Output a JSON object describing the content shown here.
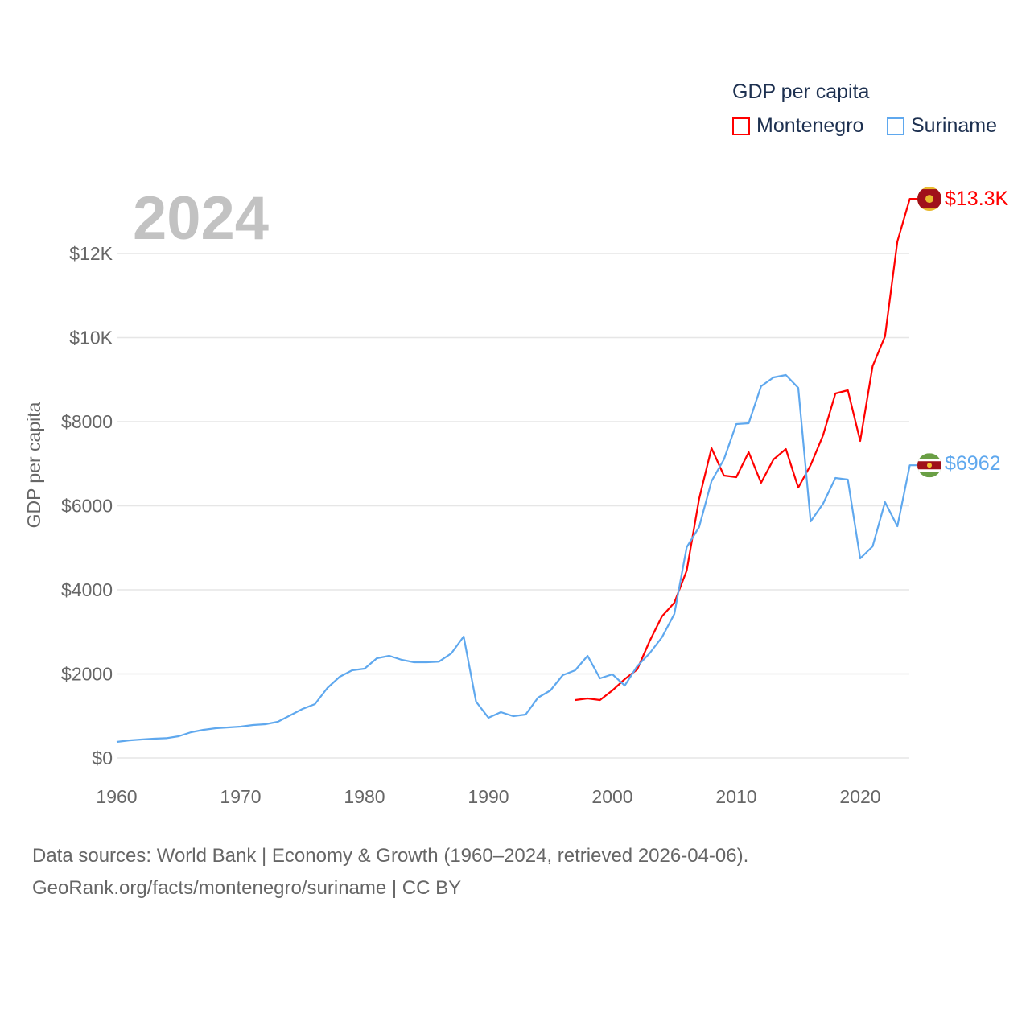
{
  "chart_data": {
    "type": "line",
    "title": "GDP per capita",
    "year_label": "2024",
    "ylabel": "GDP per capita",
    "xlabel": "",
    "xlim": [
      1960,
      2024
    ],
    "ylim": [
      0,
      13300
    ],
    "x_ticks": [
      1960,
      1970,
      1980,
      1990,
      2000,
      2010,
      2020
    ],
    "x_tick_labels": [
      "1960",
      "1970",
      "1980",
      "1990",
      "2000",
      "2010",
      "2020"
    ],
    "y_ticks": [
      0,
      2000,
      4000,
      6000,
      8000,
      10000,
      12000
    ],
    "y_tick_labels": [
      "$0",
      "$2000",
      "$4000",
      "$6000",
      "$8000",
      "$10K",
      "$12K"
    ],
    "grid": true,
    "legend_placement": "top-right",
    "series": [
      {
        "name": "Montenegro",
        "color": "#ff0000",
        "end_label": "$13.3K",
        "flag": "montenegro-flag",
        "x": [
          1997,
          1998,
          1999,
          2000,
          2001,
          2002,
          2003,
          2004,
          2005,
          2006,
          2007,
          2008,
          2009,
          2010,
          2011,
          2012,
          2013,
          2014,
          2015,
          2016,
          2017,
          2018,
          2019,
          2020,
          2021,
          2022,
          2023,
          2024
        ],
        "values": [
          1378,
          1416,
          1378,
          1608,
          1876,
          2105,
          2775,
          3368,
          3694,
          4459,
          6163,
          7368,
          6718,
          6679,
          7272,
          6545,
          7100,
          7349,
          6431,
          6967,
          7675,
          8670,
          8746,
          7541,
          9321,
          10029,
          12287,
          13300
        ]
      },
      {
        "name": "Suriname",
        "color": "#5fa8ee",
        "end_label": "$6962",
        "flag": "suriname-flag",
        "x": [
          1960,
          1961,
          1962,
          1963,
          1964,
          1965,
          1966,
          1967,
          1968,
          1969,
          1970,
          1971,
          1972,
          1973,
          1974,
          1975,
          1976,
          1977,
          1978,
          1979,
          1980,
          1981,
          1982,
          1983,
          1984,
          1985,
          1986,
          1987,
          1988,
          1989,
          1990,
          1991,
          1992,
          1993,
          1994,
          1995,
          1996,
          1997,
          1998,
          1999,
          2000,
          2001,
          2002,
          2003,
          2004,
          2005,
          2006,
          2007,
          2008,
          2009,
          2010,
          2011,
          2012,
          2013,
          2014,
          2015,
          2016,
          2017,
          2018,
          2019,
          2020,
          2021,
          2022,
          2023,
          2024
        ],
        "values": [
          383,
          420,
          440,
          460,
          470,
          517,
          612,
          670,
          708,
          727,
          746,
          785,
          804,
          861,
          1014,
          1167,
          1282,
          1665,
          1933,
          2086,
          2124,
          2373,
          2430,
          2335,
          2277,
          2277,
          2290,
          2488,
          2890,
          1340,
          957,
          1090,
          995,
          1033,
          1435,
          1608,
          1971,
          2086,
          2430,
          1895,
          1990,
          1722,
          2182,
          2488,
          2871,
          3426,
          5014,
          5493,
          6584,
          7100,
          7942,
          7962,
          8842,
          9053,
          9110,
          8804,
          5627,
          6048,
          6660,
          6622,
          4746,
          5033,
          6086,
          5512,
          6962
        ]
      }
    ]
  },
  "footer": {
    "line1": "Data sources: World Bank | Economy & Growth (1960–2024, retrieved 2026-04-06).",
    "line2": "GeoRank.org/facts/montenegro/suriname | CC BY"
  }
}
